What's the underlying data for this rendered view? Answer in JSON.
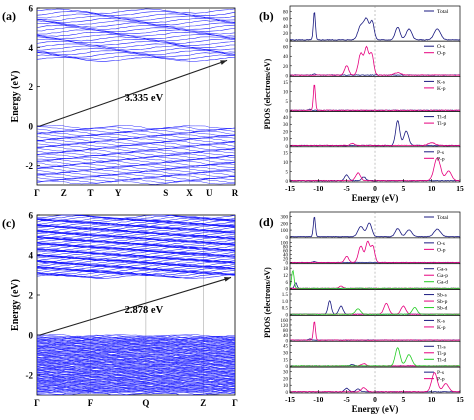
{
  "chart_data": [
    {
      "type": "line",
      "panel_label": "(a)",
      "ylabel": "Energy (eV)",
      "ylim": [
        -3,
        6
      ],
      "yticks": [
        "-2",
        "0",
        "2",
        "4",
        "6"
      ],
      "kpoint_labels": [
        "Γ",
        "Z",
        "T",
        "Y",
        "S",
        "X",
        "U",
        "R"
      ],
      "annotation": "3.335 eV",
      "band_gap_ev": 3.335,
      "colors": {
        "bands": "#1a1aff",
        "arrow": "#222222"
      }
    },
    {
      "type": "line",
      "panel_label": "(b)",
      "ylabel": "PDOS (electrons/eV)",
      "xlabel": "Energy (eV)",
      "xlim": [
        -15,
        15
      ],
      "xticks": [
        "-15",
        "-10",
        "-5",
        "0",
        "5",
        "10",
        "15"
      ],
      "subpanels": [
        {
          "legend": [
            "Total"
          ],
          "colors": [
            "#1a1a80"
          ],
          "yticks": [
            "0",
            "20",
            "40",
            "60",
            "80"
          ]
        },
        {
          "legend": [
            "O-s",
            "O-p"
          ],
          "colors": [
            "#1a1a80",
            "#e6007e"
          ],
          "yticks": [
            "0",
            "20",
            "40",
            "60"
          ]
        },
        {
          "legend": [
            "K-s",
            "K-p"
          ],
          "colors": [
            "#1a1a80",
            "#e6007e"
          ],
          "yticks": [
            "0",
            "5",
            "10",
            "15"
          ]
        },
        {
          "legend": [
            "Ti-d",
            "Ti-p"
          ],
          "colors": [
            "#1a1a80",
            "#e6007e"
          ],
          "yticks": [
            "0",
            "10",
            "20",
            "30",
            "40"
          ]
        },
        {
          "legend": [
            "P-s",
            "P-p"
          ],
          "colors": [
            "#1a1a80",
            "#e6007e"
          ],
          "yticks": [
            "0",
            "5",
            "10",
            "15"
          ]
        }
      ]
    },
    {
      "type": "line",
      "panel_label": "(c)",
      "ylabel": "Energy (eV)",
      "ylim": [
        -3,
        6
      ],
      "yticks": [
        "-2",
        "0",
        "2",
        "4",
        "6"
      ],
      "kpoint_labels": [
        "Γ",
        "F",
        "Q",
        "Z",
        "Γ"
      ],
      "annotation": "2.878 eV",
      "band_gap_ev": 2.878,
      "colors": {
        "bands": "#1a1aff",
        "arrow": "#222222"
      }
    },
    {
      "type": "line",
      "panel_label": "(d)",
      "ylabel": "PDOS (electrons/eV)",
      "xlabel": "Energy (eV)",
      "xlim": [
        -15,
        15
      ],
      "xticks": [
        "-15",
        "-10",
        "-5",
        "0",
        "5",
        "10",
        "15"
      ],
      "subpanels": [
        {
          "legend": [
            "Total"
          ],
          "colors": [
            "#1a1a80"
          ],
          "yticks": [
            "0",
            "100",
            "200",
            "300"
          ]
        },
        {
          "legend": [
            "O-s",
            "O-p"
          ],
          "colors": [
            "#1a1a80",
            "#e6007e"
          ],
          "yticks": [
            "0",
            "20",
            "40",
            "60",
            "80",
            "100"
          ]
        },
        {
          "legend": [
            "Ga-s",
            "Ga-p",
            "Ga-d"
          ],
          "colors": [
            "#1a1a80",
            "#e6007e",
            "#22cc22"
          ],
          "yticks": [
            "0",
            "6",
            "12",
            "18"
          ]
        },
        {
          "legend": [
            "Sb-s",
            "Sb-p",
            "Sb-d"
          ],
          "colors": [
            "#1a1a80",
            "#e6007e",
            "#22cc22"
          ],
          "yticks": [
            "0",
            "0.5",
            "1.0",
            "1.5"
          ]
        },
        {
          "legend": [
            "K-s",
            "K-p"
          ],
          "colors": [
            "#1a1a80",
            "#e6007e"
          ],
          "yticks": [
            "0",
            "40",
            "80",
            "120",
            "160"
          ]
        },
        {
          "legend": [
            "Ti-s",
            "Ti-p",
            "Ti-d"
          ],
          "colors": [
            "#1a1a80",
            "#e6007e",
            "#22cc22"
          ],
          "yticks": [
            "0",
            "15",
            "30",
            "45"
          ]
        },
        {
          "legend": [
            "P-s",
            "P-p"
          ],
          "colors": [
            "#1a1a80",
            "#e6007e"
          ],
          "yticks": [
            "0",
            "10",
            "20",
            "30"
          ]
        }
      ]
    }
  ]
}
